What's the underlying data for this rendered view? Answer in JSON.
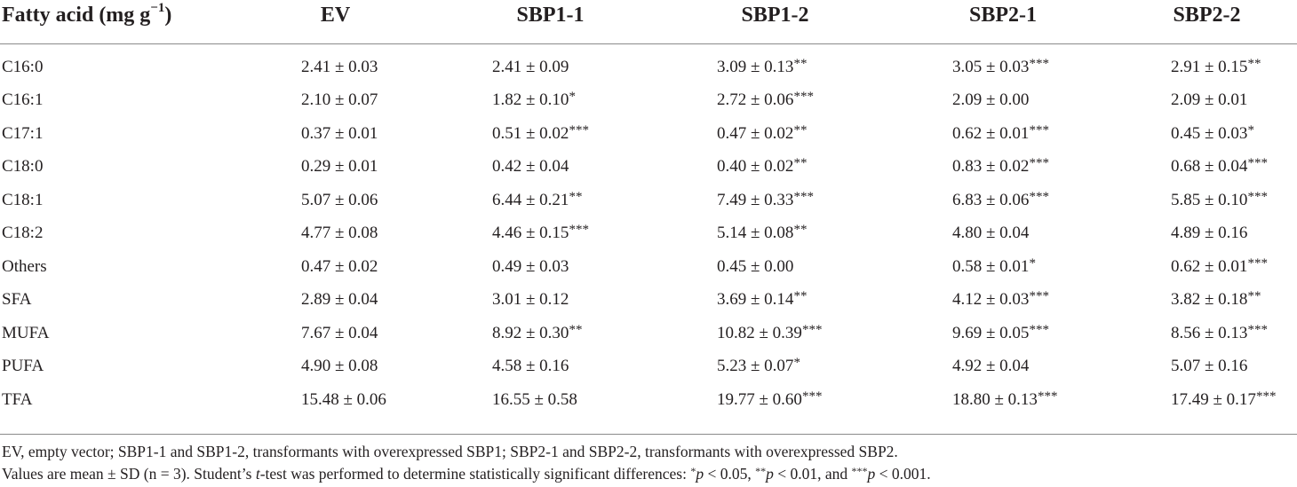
{
  "table": {
    "columns": [
      "Fatty acid (mg g",
      "EV",
      "SBP1-1",
      "SBP1-2",
      "SBP2-1",
      "SBP2-2"
    ],
    "first_header_unit": "−1",
    "first_header_close": ")",
    "rows": [
      {
        "label": "C16:0",
        "cells": [
          [
            "2.41 ± 0.03",
            ""
          ],
          [
            "2.41 ± 0.09",
            ""
          ],
          [
            "3.09 ± 0.13",
            "**"
          ],
          [
            "3.05 ± 0.03",
            "***"
          ],
          [
            "2.91 ± 0.15",
            "**"
          ]
        ]
      },
      {
        "label": "C16:1",
        "cells": [
          [
            "2.10 ± 0.07",
            ""
          ],
          [
            "1.82 ± 0.10",
            "*"
          ],
          [
            "2.72 ± 0.06",
            "***"
          ],
          [
            "2.09 ± 0.00",
            ""
          ],
          [
            "2.09 ± 0.01",
            ""
          ]
        ]
      },
      {
        "label": "C17:1",
        "cells": [
          [
            "0.37 ± 0.01",
            ""
          ],
          [
            "0.51 ± 0.02",
            "***"
          ],
          [
            "0.47 ± 0.02",
            "**"
          ],
          [
            "0.62 ± 0.01",
            "***"
          ],
          [
            "0.45 ± 0.03",
            "*"
          ]
        ]
      },
      {
        "label": "C18:0",
        "cells": [
          [
            "0.29 ± 0.01",
            ""
          ],
          [
            "0.42 ± 0.04",
            ""
          ],
          [
            "0.40 ± 0.02",
            "**"
          ],
          [
            "0.83 ± 0.02",
            "***"
          ],
          [
            "0.68 ± 0.04",
            "***"
          ]
        ]
      },
      {
        "label": "C18:1",
        "cells": [
          [
            "5.07 ± 0.06",
            ""
          ],
          [
            "6.44 ± 0.21",
            "**"
          ],
          [
            "7.49 ± 0.33",
            "***"
          ],
          [
            "6.83 ± 0.06",
            "***"
          ],
          [
            "5.85 ± 0.10",
            "***"
          ]
        ]
      },
      {
        "label": "C18:2",
        "cells": [
          [
            "4.77 ± 0.08",
            ""
          ],
          [
            "4.46 ± 0.15",
            "***"
          ],
          [
            "5.14 ± 0.08",
            "**"
          ],
          [
            "4.80 ± 0.04",
            ""
          ],
          [
            "4.89 ± 0.16",
            ""
          ]
        ]
      },
      {
        "label": "Others",
        "cells": [
          [
            "0.47 ± 0.02",
            ""
          ],
          [
            "0.49 ± 0.03",
            ""
          ],
          [
            "0.45 ± 0.00",
            ""
          ],
          [
            "0.58 ± 0.01",
            "*"
          ],
          [
            "0.62 ± 0.01",
            "***"
          ]
        ]
      },
      {
        "label": "SFA",
        "cells": [
          [
            "2.89 ± 0.04",
            ""
          ],
          [
            "3.01 ± 0.12",
            ""
          ],
          [
            "3.69 ± 0.14",
            "**"
          ],
          [
            "4.12 ± 0.03",
            "***"
          ],
          [
            "3.82 ± 0.18",
            "**"
          ]
        ]
      },
      {
        "label": "MUFA",
        "cells": [
          [
            "7.67 ± 0.04",
            ""
          ],
          [
            "8.92 ± 0.30",
            "**"
          ],
          [
            "10.82 ± 0.39",
            "***"
          ],
          [
            "9.69 ± 0.05",
            "***"
          ],
          [
            "8.56 ± 0.13",
            "***"
          ]
        ]
      },
      {
        "label": "PUFA",
        "cells": [
          [
            "4.90 ± 0.08",
            ""
          ],
          [
            "4.58 ± 0.16",
            ""
          ],
          [
            "5.23 ± 0.07",
            "*"
          ],
          [
            "4.92 ± 0.04",
            ""
          ],
          [
            "5.07 ± 0.16",
            ""
          ]
        ]
      },
      {
        "label": "TFA",
        "cells": [
          [
            "15.48 ± 0.06",
            ""
          ],
          [
            "16.55 ± 0.58",
            ""
          ],
          [
            "19.77 ± 0.60",
            "***"
          ],
          [
            "18.80 ± 0.13",
            "***"
          ],
          [
            "17.49 ± 0.17",
            "***"
          ]
        ]
      }
    ]
  },
  "footnotes": {
    "line1": "EV, empty vector; SBP1-1 and SBP1-2, transformants with overexpressed SBP1; SBP2-1 and SBP2-2, transformants with overexpressed SBP2.",
    "line2_a": "Values are mean ± SD (n = 3). Student’s ",
    "line2_t": "t",
    "line2_b": "-test was performed to determine statistically significant differences: ",
    "sig1_stars": "*",
    "sig1_p": "p",
    "sig1_rest": " < 0.05, ",
    "sig2_stars": "**",
    "sig2_p": "p",
    "sig2_rest": " < 0.01, and ",
    "sig3_stars": "***",
    "sig3_p": "p",
    "sig3_rest": " < 0.001."
  }
}
